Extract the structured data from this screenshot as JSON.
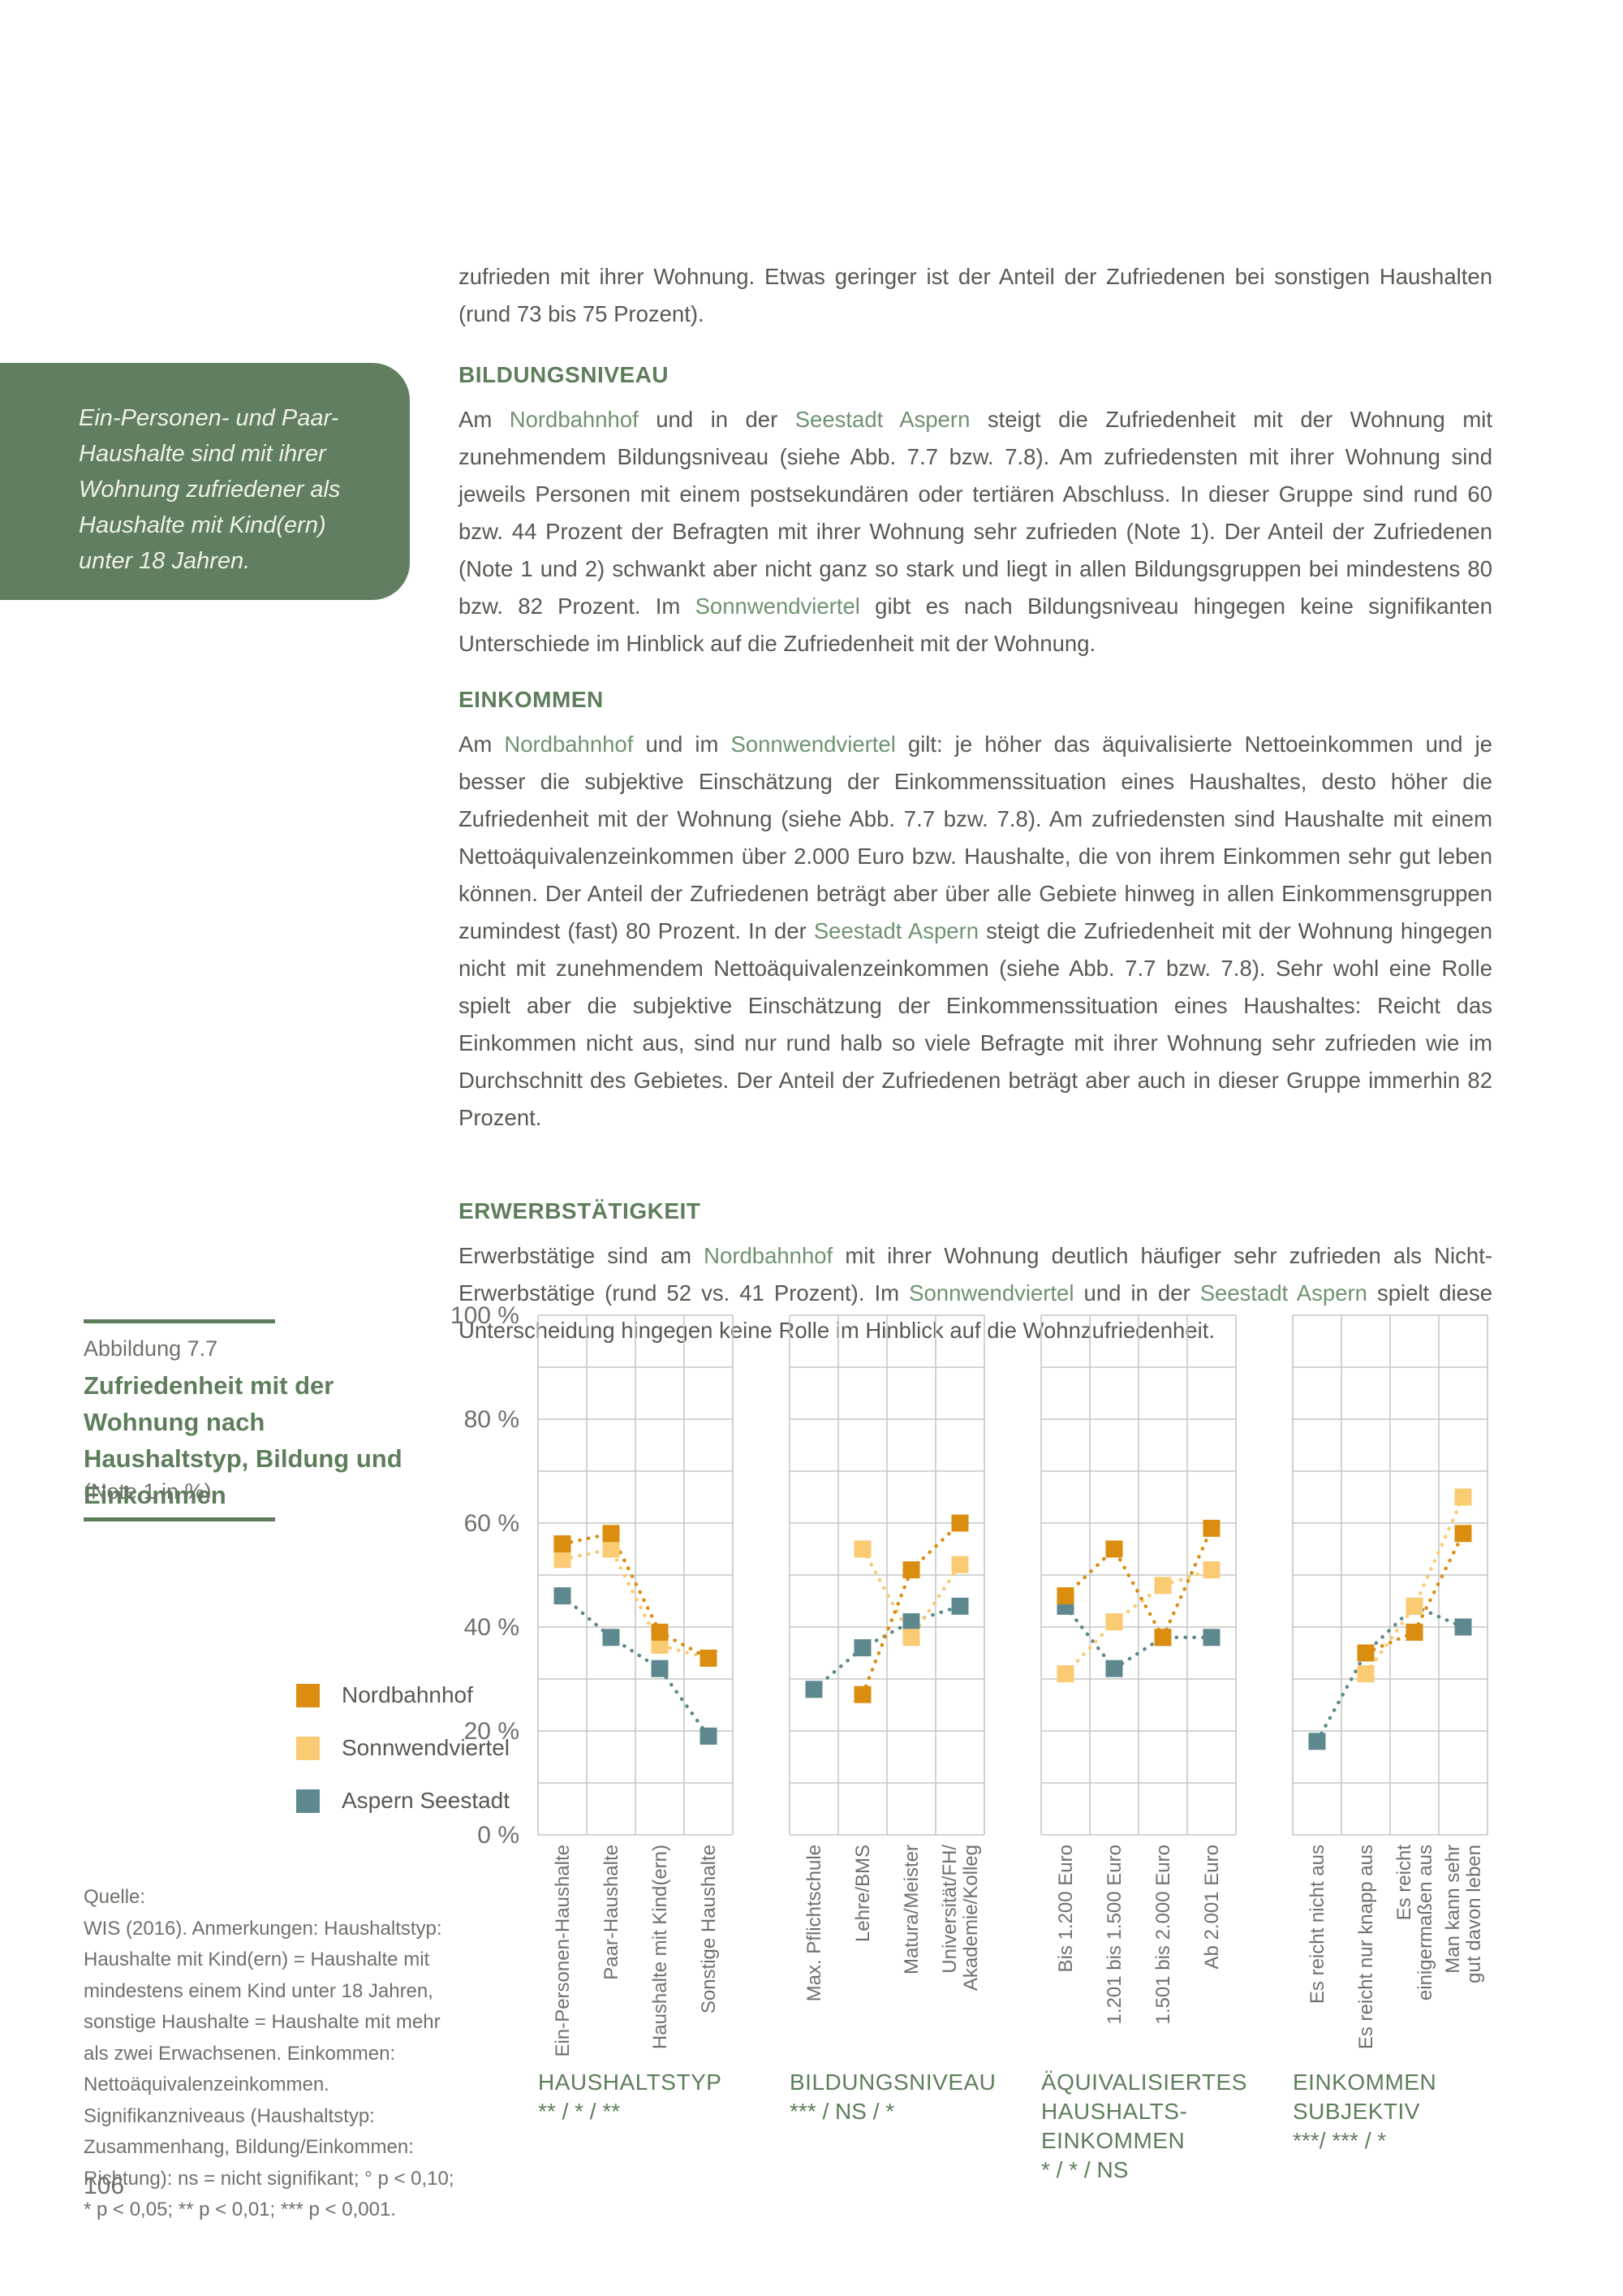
{
  "page": {
    "number": "106"
  },
  "callout": {
    "text": "Ein-Personen- und Paar-Haushalte sind mit ihrer Wohnung zufriedener als Haushalte mit Kind(ern) unter 18 Jahren.",
    "bg_color": "#617e60"
  },
  "intro": {
    "runs": [
      {
        "t": "zufrieden mit ihrer Wohnung. Etwas geringer ist der Anteil der Zufriedenen bei sonstigen Haushalten (rund 73 bis 75 Prozent)."
      }
    ]
  },
  "sections": [
    {
      "heading": "BILDUNGSNIVEAU",
      "runs": [
        {
          "t": "Am "
        },
        {
          "t": "Nordbahnhof",
          "g": true
        },
        {
          "t": " und in der "
        },
        {
          "t": "Seestadt Aspern",
          "g": true
        },
        {
          "t": " steigt die Zufriedenheit mit der Wohnung mit zunehmendem Bildungsniveau (siehe Abb. 7.7 bzw. 7.8). Am zufriedensten mit ihrer Wohnung sind jeweils Personen mit einem postsekundären oder tertiären Abschluss. In dieser Gruppe sind rund 60 bzw. 44 Prozent der Befragten mit ihrer Wohnung sehr zufrieden (Note 1). Der Anteil der Zufriedenen (Note 1 und 2) schwankt aber nicht ganz so stark und liegt in allen Bildungsgruppen bei mindestens 80 bzw. 82 Prozent. Im "
        },
        {
          "t": "Sonnwendviertel",
          "g": true
        },
        {
          "t": " gibt es nach Bildungsniveau hingegen keine signifikanten Unterschiede im Hinblick auf die Zufriedenheit mit der Wohnung."
        }
      ]
    },
    {
      "heading": "EINKOMMEN",
      "runs": [
        {
          "t": "Am "
        },
        {
          "t": "Nordbahnhof",
          "g": true
        },
        {
          "t": " und im "
        },
        {
          "t": "Sonnwendviertel",
          "g": true
        },
        {
          "t": " gilt: je höher das äquivalisierte Nettoeinkommen und je besser die subjektive Einschätzung der Einkommenssituation eines Haushaltes, desto höher die Zufriedenheit mit der Wohnung (siehe Abb. 7.7 bzw. 7.8). Am zufriedensten sind Haushalte mit einem Nettoäquivalenzeinkommen über 2.000 Euro bzw. Haushalte, die von ihrem Einkommen sehr gut leben können. Der Anteil der Zufriedenen beträgt aber über alle Gebiete hinweg in allen Einkommensgruppen zumindest (fast) 80 Prozent. In der "
        },
        {
          "t": "Seestadt Aspern",
          "g": true
        },
        {
          "t": " steigt die Zufriedenheit mit der Wohnung hingegen nicht mit zunehmendem Nettoäquivalenzeinkommen (siehe Abb. 7.7 bzw. 7.8). Sehr wohl eine Rolle spielt aber die subjektive Einschätzung der Einkommenssituation eines Haushaltes: Reicht das Einkommen nicht aus, sind nur rund halb so viele Befragte mit ihrer Wohnung sehr zufrieden wie im Durchschnitt des Gebietes. Der Anteil der Zufriedenen beträgt aber auch in dieser Gruppe immerhin 82 Prozent."
        }
      ]
    },
    {
      "heading": "ERWERBSTÄTIGKEIT",
      "runs": [
        {
          "t": "Erwerbstätige sind am "
        },
        {
          "t": "Nordbahnhof",
          "g": true
        },
        {
          "t": " mit ihrer Wohnung deutlich häufiger sehr zufrieden als Nicht-Erwerbstätige (rund 52 vs. 41 Prozent). Im "
        },
        {
          "t": "Sonnwendviertel",
          "g": true
        },
        {
          "t": " und in der "
        },
        {
          "t": "Seestadt Aspern",
          "g": true
        },
        {
          "t": " spielt diese Unterscheidung hingegen keine Rolle im Hinblick auf die Wohnzufriedenheit."
        }
      ]
    }
  ],
  "figure": {
    "label": "Abbildung 7.7",
    "title": "Zufriedenheit mit der Wohnung nach Haushaltstyp, Bildung und Einkommen",
    "subtitle": "(Note 1 in %)"
  },
  "legend": [
    {
      "label": "Nordbahnhof",
      "color": "#db8d10"
    },
    {
      "label": "Sonnwendviertel",
      "color": "#facb72"
    },
    {
      "label": "Aspern Seestadt",
      "color": "#5d898e"
    }
  ],
  "source": {
    "label": "Quelle:",
    "lines": [
      "WIS (2016). Anmerkungen: Haushaltstyp:",
      "Haushalte mit Kind(ern) = Haushalte mit",
      "mindestens einem Kind unter 18 Jahren,",
      "sonstige Haushalte = Haushalte mit mehr",
      "als zwei Erwachsenen. Einkommen:",
      "Nettoäquivalenzeinkommen.",
      "Signifikanzniveaus (Haushaltstyp:",
      "Zusammenhang, Bildung/Einkommen:",
      "Richtung): ns = nicht signifikant; ° p < 0,10;",
      "* p < 0,05; ** p < 0,01; *** p < 0,001."
    ]
  },
  "chart_data": {
    "type": "scatter",
    "unit": "%",
    "ylim": [
      0,
      100
    ],
    "yticks": [
      0,
      20,
      40,
      60,
      80,
      100
    ],
    "grid": true,
    "legend_position": "left",
    "series_colors": {
      "Nordbahnhof": "#db8d10",
      "Sonnwendviertel": "#facb72",
      "Aspern Seestadt": "#5d898e"
    },
    "panels": [
      {
        "title_lines": [
          "HAUSHALTSTYP"
        ],
        "significance": "** / * / **",
        "categories": [
          "Ein-Personen-Haushalte",
          "Paar-Haushalte",
          "Haushalte mit Kind(ern)",
          "Sonstige Haushalte"
        ],
        "category_lines": [
          [
            "Ein-Personen-Haushalte"
          ],
          [
            "Paar-Haushalte"
          ],
          [
            "Haushalte mit Kind(ern)"
          ],
          [
            "Sonstige Haushalte"
          ]
        ],
        "series": [
          {
            "name": "Nordbahnhof",
            "values": [
              56,
              58,
              39,
              34
            ]
          },
          {
            "name": "Sonnwendviertel",
            "values": [
              53,
              55,
              36.5,
              34
            ]
          },
          {
            "name": "Aspern Seestadt",
            "values": [
              46,
              38,
              32,
              19
            ]
          }
        ]
      },
      {
        "title_lines": [
          "BILDUNGSNIVEAU"
        ],
        "significance": "*** / NS / *",
        "categories": [
          "Max. Pflichtschule",
          "Lehre/BMS",
          "Matura/Meister",
          "Universität/FH/Akademie/Kolleg"
        ],
        "category_lines": [
          [
            "Max. Pflichtschule"
          ],
          [
            "Lehre/BMS"
          ],
          [
            "Matura/Meister"
          ],
          [
            "Universität/FH/",
            "Akademie/Kolleg"
          ]
        ],
        "series": [
          {
            "name": "Nordbahnhof",
            "values": [
              null,
              27,
              51,
              60
            ]
          },
          {
            "name": "Sonnwendviertel",
            "values": [
              null,
              55,
              38,
              52
            ]
          },
          {
            "name": "Aspern Seestadt",
            "values": [
              28,
              36,
              41,
              44
            ]
          }
        ]
      },
      {
        "title_lines": [
          "ÄQUIVALISIERTES",
          "HAUSHALTS-",
          "EINKOMMEN"
        ],
        "significance": "* / * / NS",
        "categories": [
          "Bis 1.200 Euro",
          "1.201 bis 1.500 Euro",
          "1.501 bis 2.000 Euro",
          "Ab 2.001 Euro"
        ],
        "category_lines": [
          [
            "Bis 1.200 Euro"
          ],
          [
            "1.201 bis 1.500 Euro"
          ],
          [
            "1.501 bis 2.000 Euro"
          ],
          [
            "Ab 2.001 Euro"
          ]
        ],
        "series": [
          {
            "name": "Nordbahnhof",
            "values": [
              46,
              55,
              38,
              59
            ]
          },
          {
            "name": "Sonnwendviertel",
            "values": [
              31,
              41,
              48,
              51
            ]
          },
          {
            "name": "Aspern Seestadt",
            "values": [
              44,
              32,
              38,
              38
            ]
          }
        ]
      },
      {
        "title_lines": [
          "EINKOMMEN",
          "SUBJEKTIV"
        ],
        "significance": "***/ *** / *",
        "categories": [
          "Es reicht nicht aus",
          "Es reicht nur knapp aus",
          "Es reicht einigermaßen aus",
          "Man kann sehr gut davon leben"
        ],
        "category_lines": [
          [
            "Es reicht nicht aus"
          ],
          [
            "Es reicht nur knapp aus"
          ],
          [
            "Es reicht",
            "einigermaßen aus"
          ],
          [
            "Man kann sehr",
            "gut davon leben"
          ]
        ],
        "series": [
          {
            "name": "Nordbahnhof",
            "values": [
              null,
              35,
              39,
              58
            ]
          },
          {
            "name": "Sonnwendviertel",
            "values": [
              null,
              31,
              44,
              65
            ]
          },
          {
            "name": "Aspern Seestadt",
            "values": [
              18,
              35,
              44,
              40
            ]
          }
        ]
      }
    ]
  }
}
